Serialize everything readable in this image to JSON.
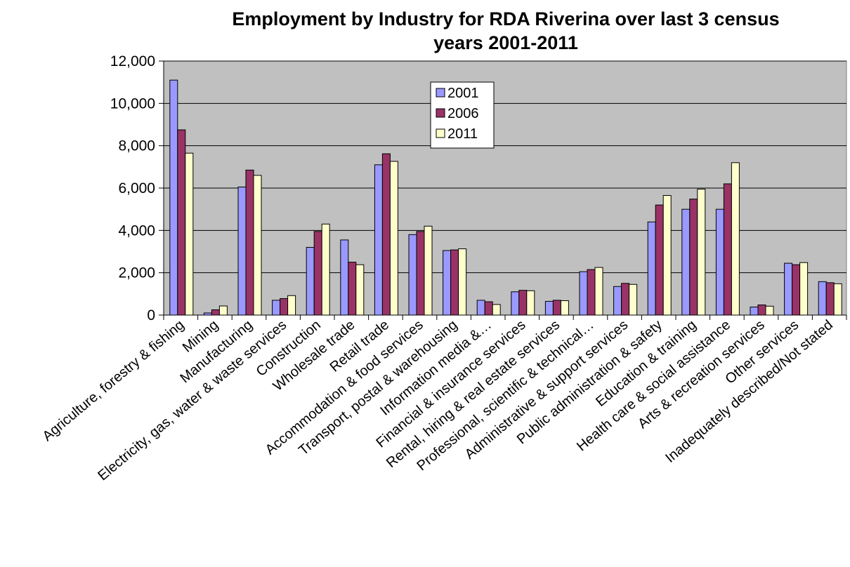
{
  "chart_data": {
    "type": "bar",
    "title_lines": [
      "Employment by Industry for RDA Riverina over last 3 census",
      "years 2001-2011"
    ],
    "xlabel": "",
    "ylabel": "",
    "ylim": [
      0,
      12000
    ],
    "yticks": [
      0,
      2000,
      4000,
      6000,
      8000,
      10000,
      12000
    ],
    "ytick_labels": [
      "0",
      "2,000",
      "4,000",
      "6,000",
      "8,000",
      "10,000",
      "12,000"
    ],
    "grid": true,
    "legend_position": "top-center",
    "categories": [
      "Agriculture, forestry & fishing",
      "Mining",
      "Manufacturing",
      "Electricity, gas, water & waste services",
      "Construction",
      "Wholesale trade",
      "Retail trade",
      "Accommodation & food services",
      "Transport, postal & warehousing",
      "Information media &…",
      "Financial & insurance services",
      "Rental, hiring & real estate services",
      "Professional, scientific & technical…",
      "Administrative & support services",
      "Public administration & safety",
      "Education & training",
      "Health care & social assistance",
      "Arts & recreation services",
      "Other services",
      "Inadequately described/Not stated"
    ],
    "series": [
      {
        "name": "2001",
        "color": "#9999ff",
        "values": [
          11100,
          100,
          6050,
          700,
          3200,
          3550,
          7100,
          3800,
          3050,
          700,
          1100,
          650,
          2050,
          1350,
          4400,
          5000,
          5000,
          380,
          2450,
          1580
        ]
      },
      {
        "name": "2006",
        "color": "#993366",
        "values": [
          8750,
          250,
          6850,
          780,
          3950,
          2500,
          7620,
          3950,
          3080,
          630,
          1170,
          700,
          2150,
          1500,
          5200,
          5480,
          6200,
          480,
          2380,
          1530
        ]
      },
      {
        "name": "2011",
        "color": "#ffffcc",
        "values": [
          7650,
          430,
          6600,
          920,
          4300,
          2380,
          7260,
          4200,
          3130,
          500,
          1150,
          680,
          2250,
          1450,
          5650,
          5950,
          7200,
          420,
          2480,
          1480
        ]
      }
    ],
    "plot_bg": "#c0c0c0",
    "grid_color": "#000000"
  }
}
